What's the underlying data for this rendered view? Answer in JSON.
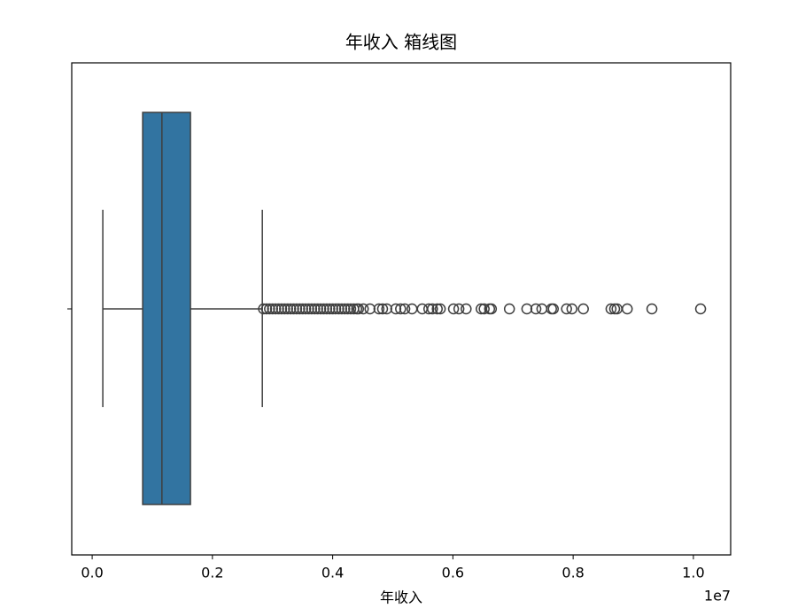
{
  "chart_data": {
    "type": "box",
    "orientation": "horizontal",
    "title": "年收入 箱线图",
    "xlabel": "年收入",
    "offset_label": "1e7",
    "color": "#3274a1",
    "box": {
      "whislo": 0.0177,
      "q1": 0.084,
      "med": 0.116,
      "q3": 0.1635,
      "whishi": 0.283,
      "fliers": [
        0.285,
        0.29,
        0.295,
        0.3,
        0.305,
        0.31,
        0.315,
        0.32,
        0.325,
        0.33,
        0.335,
        0.34,
        0.345,
        0.35,
        0.355,
        0.36,
        0.365,
        0.37,
        0.375,
        0.38,
        0.385,
        0.39,
        0.395,
        0.4,
        0.405,
        0.41,
        0.415,
        0.42,
        0.425,
        0.43,
        0.435,
        0.44,
        0.443,
        0.451,
        0.462,
        0.477,
        0.483,
        0.49,
        0.505,
        0.513,
        0.52,
        0.532,
        0.549,
        0.56,
        0.566,
        0.574,
        0.579,
        0.601,
        0.61,
        0.622,
        0.647,
        0.652,
        0.661,
        0.664,
        0.694,
        0.723,
        0.738,
        0.748,
        0.764,
        0.767,
        0.789,
        0.798,
        0.817,
        0.863,
        0.869,
        0.873,
        0.89,
        0.931,
        1.012
      ]
    },
    "xlim": [
      -0.034,
      1.062
    ],
    "xticks": [
      {
        "value": 0,
        "label": "0.0"
      },
      0.2,
      0.4,
      0.6,
      0.8,
      {
        "value": 1,
        "label": "1.0"
      }
    ]
  }
}
